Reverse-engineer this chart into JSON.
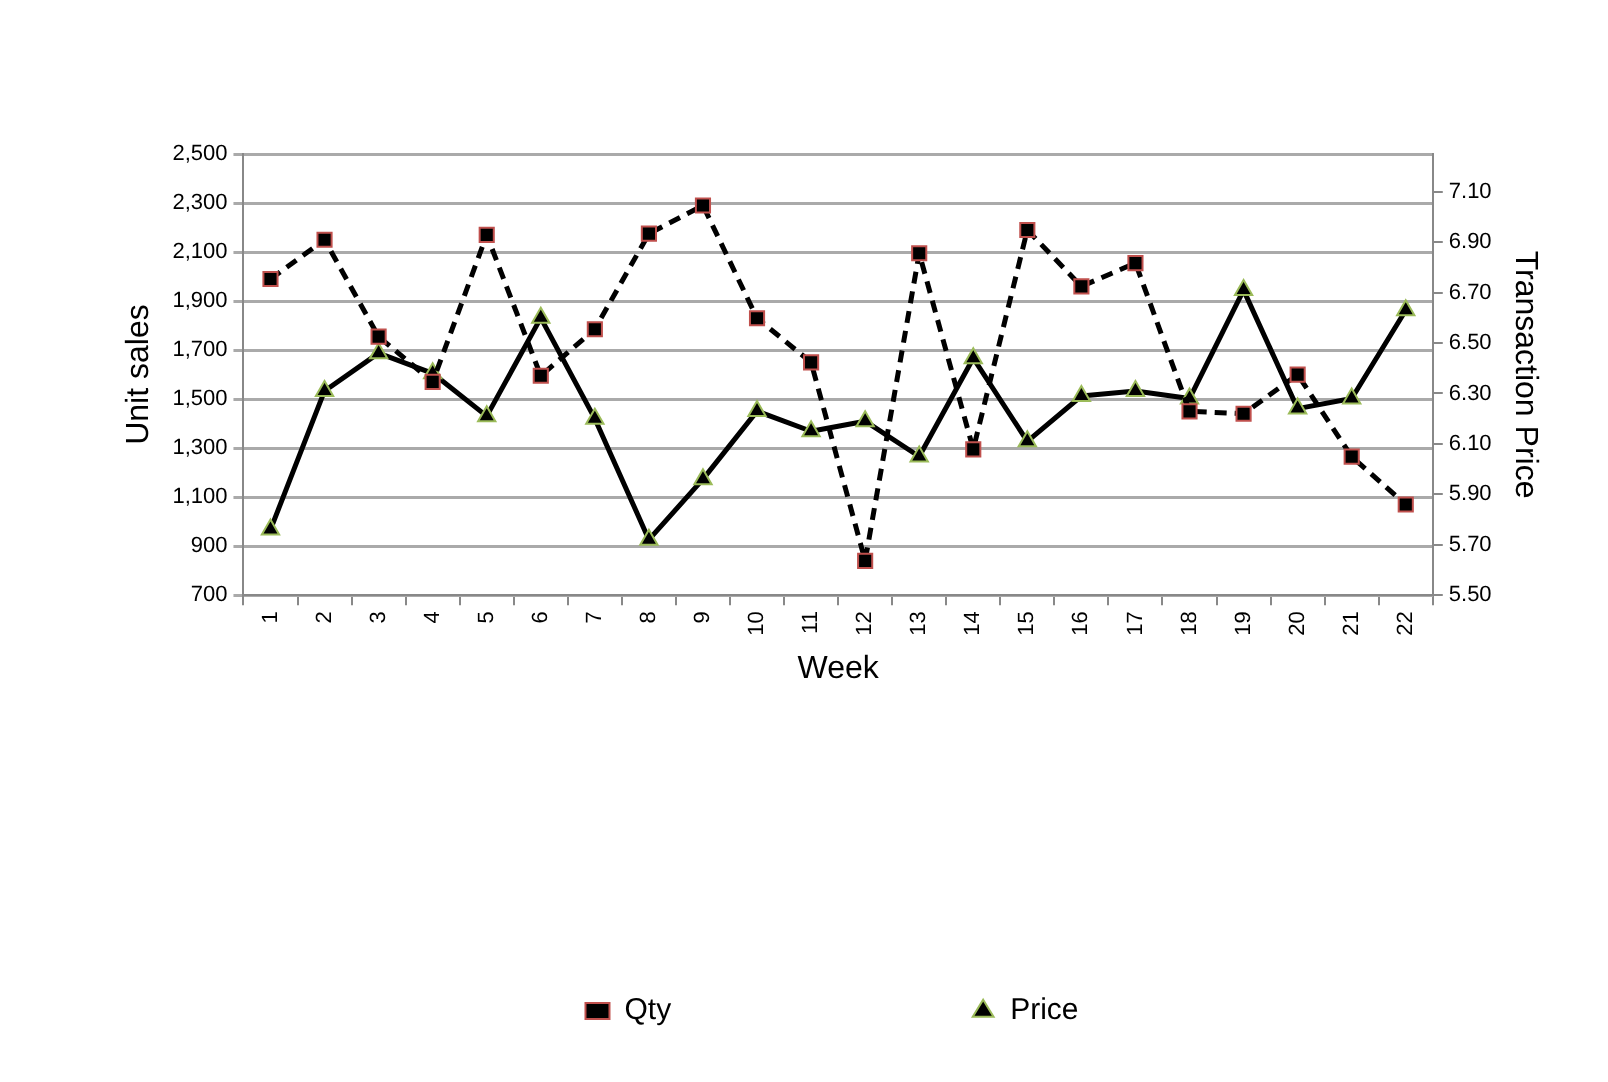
{
  "chart_data": {
    "type": "line",
    "xlabel": "Week",
    "ylabel": "Unit sales",
    "y2label": "Transaction Price",
    "categories": [
      "1",
      "2",
      "3",
      "4",
      "5",
      "6",
      "7",
      "8",
      "9",
      "10",
      "11",
      "12",
      "13",
      "14",
      "15",
      "16",
      "17",
      "18",
      "19",
      "20",
      "21",
      "22"
    ],
    "series": [
      {
        "name": "Qty",
        "color": "#000000",
        "marker": "square",
        "line_style": "dashed",
        "values": [
          1990,
          2150,
          1755,
          1570,
          2170,
          1595,
          1785,
          2175,
          2290,
          1830,
          1650,
          840,
          2095,
          1295,
          2190,
          1960,
          2055,
          1450,
          1440,
          1600,
          1265,
          1070
        ]
      },
      {
        "name": "Price",
        "color": "#000000",
        "marker": "triangle",
        "line_style": "solid",
        "axis": "y2",
        "values": [
          5.76,
          6.31,
          6.46,
          6.38,
          6.21,
          6.6,
          6.2,
          5.72,
          5.96,
          6.23,
          6.15,
          6.19,
          6.05,
          6.44,
          6.11,
          6.29,
          6.31,
          6.28,
          6.71,
          6.24,
          6.28,
          6.63
        ]
      }
    ],
    "ylim": [
      700,
      2500
    ],
    "yticks": [
      700,
      900,
      {
        "value": 1100,
        "label": "1,100"
      },
      {
        "value": 1300,
        "label": "1,300"
      },
      {
        "value": 1500,
        "label": "1,500"
      },
      {
        "value": 1700,
        "label": "1,700"
      },
      {
        "value": 1900,
        "label": "1,900"
      },
      {
        "value": 2100,
        "label": "2,100"
      },
      {
        "value": 2300,
        "label": "2,300"
      },
      {
        "value": 2500,
        "label": "2,500"
      }
    ],
    "y2lim": [
      5.5,
      7.25
    ],
    "y2ticks": [
      {
        "value": 5.5,
        "label": "5.50"
      },
      {
        "value": 5.7,
        "label": "5.70"
      },
      {
        "value": 5.9,
        "label": "5.90"
      },
      {
        "value": 6.1,
        "label": "6.10"
      },
      {
        "value": 6.3,
        "label": "6.30"
      },
      {
        "value": 6.5,
        "label": "6.50"
      },
      {
        "value": 6.7,
        "label": "6.70"
      },
      {
        "value": 6.9,
        "label": "6.90"
      },
      {
        "value": 7.1,
        "label": "7.10"
      }
    ],
    "grid": "y",
    "legend": "bottom"
  }
}
